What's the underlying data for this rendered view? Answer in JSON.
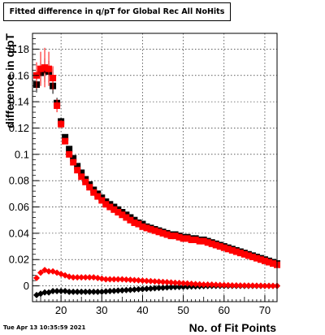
{
  "chart_data": {
    "type": "scatter",
    "title": "Fitted difference in q/pT for Global Rec All NoHits",
    "xlabel": "No. of Fit Points",
    "ylabel": "difference in q/pT",
    "timestamp": "Tue Apr 13 10:35:59 2021",
    "xlim": [
      13,
      73
    ],
    "ylim": [
      -0.012,
      0.192
    ],
    "x_ticks": [
      20,
      30,
      40,
      50,
      60,
      70
    ],
    "y_ticks": [
      0,
      0.02,
      0.04,
      0.06,
      0.08,
      0.1,
      0.12,
      0.14,
      0.16,
      0.18
    ],
    "y_tick_labels": [
      "0",
      "0.02",
      "0.04",
      "0.06",
      "0.08",
      "0.1",
      "0.12",
      "0.14",
      "0.16",
      "0.18"
    ],
    "grid": true,
    "series": [
      {
        "color": "#000000",
        "marker": "square",
        "x": [
          14,
          15,
          16,
          17,
          18,
          19,
          20,
          21,
          22,
          23,
          24,
          25,
          26,
          27,
          28,
          29,
          30,
          31,
          32,
          33,
          34,
          35,
          36,
          37,
          38,
          39,
          40,
          41,
          42,
          43,
          44,
          45,
          46,
          47,
          48,
          49,
          50,
          51,
          52,
          53,
          54,
          55,
          56,
          57,
          58,
          59,
          60,
          61,
          62,
          63,
          64,
          65,
          66,
          67,
          68,
          69,
          70,
          71,
          72,
          73
        ],
        "y": [
          0.153,
          0.162,
          0.164,
          0.163,
          0.152,
          0.139,
          0.125,
          0.113,
          0.104,
          0.097,
          0.091,
          0.086,
          0.081,
          0.077,
          0.073,
          0.07,
          0.067,
          0.064,
          0.062,
          0.06,
          0.058,
          0.056,
          0.054,
          0.052,
          0.05,
          0.048,
          0.047,
          0.045,
          0.044,
          0.043,
          0.042,
          0.041,
          0.04,
          0.039,
          0.039,
          0.038,
          0.037,
          0.037,
          0.036,
          0.036,
          0.035,
          0.035,
          0.034,
          0.033,
          0.032,
          0.031,
          0.03,
          0.029,
          0.028,
          0.027,
          0.026,
          0.025,
          0.024,
          0.023,
          0.022,
          0.021,
          0.02,
          0.019,
          0.018,
          0.017
        ],
        "yerr": [
          0.006,
          0.008,
          0.009,
          0.008,
          0.006,
          0.004,
          0.003,
          0.002,
          0.002,
          0.001,
          0.001,
          0.001,
          0.001,
          0.001,
          0.001,
          0.001,
          0.001,
          0.001,
          0.001,
          0.001,
          0.001,
          0.001,
          0.001,
          0.001,
          0.001,
          0.001,
          0.001,
          0.001,
          0.001,
          0.001,
          0.001,
          0.001,
          0.001,
          0.001,
          0.001,
          0.001,
          0.001,
          0.001,
          0.001,
          0.001,
          0.001,
          0.001,
          0.001,
          0.001,
          0.001,
          0.001,
          0.001,
          0.001,
          0.001,
          0.001,
          0.001,
          0.001,
          0.001,
          0.001,
          0.001,
          0.001,
          0.001,
          0.001,
          0.001,
          0.001
        ]
      },
      {
        "color": "#ff0000",
        "marker": "square",
        "x": [
          14,
          15,
          16,
          17,
          18,
          19,
          20,
          21,
          22,
          23,
          24,
          25,
          26,
          27,
          28,
          29,
          30,
          31,
          32,
          33,
          34,
          35,
          36,
          37,
          38,
          39,
          40,
          41,
          42,
          43,
          44,
          45,
          46,
          47,
          48,
          49,
          50,
          51,
          52,
          53,
          54,
          55,
          56,
          57,
          58,
          59,
          60,
          61,
          62,
          63,
          64,
          65,
          66,
          67,
          68,
          69,
          70,
          71,
          72,
          73
        ],
        "y": [
          0.16,
          0.165,
          0.166,
          0.165,
          0.158,
          0.137,
          0.123,
          0.11,
          0.1,
          0.094,
          0.088,
          0.083,
          0.079,
          0.075,
          0.071,
          0.068,
          0.065,
          0.062,
          0.06,
          0.058,
          0.056,
          0.054,
          0.052,
          0.05,
          0.048,
          0.047,
          0.045,
          0.044,
          0.043,
          0.042,
          0.041,
          0.04,
          0.039,
          0.038,
          0.038,
          0.037,
          0.036,
          0.036,
          0.035,
          0.035,
          0.034,
          0.034,
          0.033,
          0.032,
          0.031,
          0.03,
          0.029,
          0.028,
          0.027,
          0.026,
          0.025,
          0.024,
          0.023,
          0.022,
          0.021,
          0.02,
          0.019,
          0.018,
          0.017,
          0.016
        ],
        "yerr": [
          0.01,
          0.013,
          0.015,
          0.013,
          0.009,
          0.005,
          0.003,
          0.002,
          0.002,
          0.001,
          0.001,
          0.001,
          0.001,
          0.001,
          0.001,
          0.001,
          0.001,
          0.001,
          0.001,
          0.001,
          0.001,
          0.001,
          0.001,
          0.001,
          0.001,
          0.001,
          0.001,
          0.001,
          0.001,
          0.001,
          0.001,
          0.001,
          0.001,
          0.001,
          0.001,
          0.001,
          0.001,
          0.001,
          0.001,
          0.001,
          0.001,
          0.001,
          0.001,
          0.001,
          0.001,
          0.001,
          0.001,
          0.001,
          0.001,
          0.001,
          0.001,
          0.001,
          0.001,
          0.001,
          0.001,
          0.001,
          0.001,
          0.001,
          0.001,
          0.001
        ]
      },
      {
        "color": "#000000",
        "marker": "diamond",
        "x": [
          14,
          15,
          16,
          17,
          18,
          19,
          20,
          21,
          22,
          23,
          24,
          25,
          26,
          27,
          28,
          29,
          30,
          31,
          32,
          33,
          34,
          35,
          36,
          37,
          38,
          39,
          40,
          41,
          42,
          43,
          44,
          45,
          46,
          47,
          48,
          49,
          50,
          51,
          52,
          53,
          54,
          55,
          56,
          57,
          58,
          59,
          60,
          61,
          62,
          63,
          64,
          65,
          66,
          67,
          68,
          69,
          70,
          71,
          72,
          73
        ],
        "y": [
          -0.007,
          -0.006,
          -0.005,
          -0.005,
          -0.004,
          -0.004,
          -0.004,
          -0.004,
          -0.0045,
          -0.0045,
          -0.0045,
          -0.0045,
          -0.0045,
          -0.0045,
          -0.0045,
          -0.0045,
          -0.0045,
          -0.0042,
          -0.004,
          -0.0038,
          -0.0036,
          -0.0034,
          -0.0032,
          -0.003,
          -0.0028,
          -0.0026,
          -0.0024,
          -0.0022,
          -0.002,
          -0.0018,
          -0.0016,
          -0.0014,
          -0.0012,
          -0.001,
          -0.0009,
          -0.0008,
          -0.0007,
          -0.0006,
          -0.0005,
          -0.0004,
          -0.0003,
          -0.0002,
          -0.0001,
          0,
          0,
          0,
          0,
          0,
          0,
          0,
          0,
          0,
          0,
          0,
          0,
          0,
          0,
          0,
          0,
          0
        ],
        "yerr": [
          0.002,
          0.002,
          0.002,
          0.001,
          0.001,
          0.001,
          0.001,
          0.001,
          0.001,
          0.001,
          0.001,
          0.001,
          0.001,
          0.001,
          0.001,
          0.001,
          0.001,
          0.001,
          0.001,
          0.001,
          0.001,
          0.001,
          0.001,
          0.001,
          0.001,
          0.001,
          0.001,
          0.001,
          0.001,
          0.001,
          0.001,
          0.001,
          0.001,
          0.001,
          0.001,
          0.001,
          0.001,
          0.001,
          0.001,
          0.001,
          0.001,
          0.001,
          0.001,
          0.001,
          0.001,
          0.001,
          0.001,
          0.001,
          0.001,
          0.001,
          0.001,
          0.001,
          0.001,
          0.001,
          0.001,
          0.001,
          0.001,
          0.001,
          0.001,
          0.001
        ]
      },
      {
        "color": "#ff0000",
        "marker": "diamond",
        "x": [
          14,
          15,
          16,
          17,
          18,
          19,
          20,
          21,
          22,
          23,
          24,
          25,
          26,
          27,
          28,
          29,
          30,
          31,
          32,
          33,
          34,
          35,
          36,
          37,
          38,
          39,
          40,
          41,
          42,
          43,
          44,
          45,
          46,
          47,
          48,
          49,
          50,
          51,
          52,
          53,
          54,
          55,
          56,
          57,
          58,
          59,
          60,
          61,
          62,
          63,
          64,
          65,
          66,
          67,
          68,
          69,
          70,
          71,
          72,
          73
        ],
        "y": [
          0.006,
          0.01,
          0.012,
          0.011,
          0.011,
          0.01,
          0.009,
          0.008,
          0.007,
          0.0065,
          0.0065,
          0.0065,
          0.0065,
          0.0065,
          0.0065,
          0.006,
          0.0055,
          0.005,
          0.005,
          0.005,
          0.005,
          0.005,
          0.0048,
          0.0046,
          0.0044,
          0.0042,
          0.004,
          0.0038,
          0.0036,
          0.0034,
          0.0032,
          0.003,
          0.0028,
          0.0026,
          0.0024,
          0.0022,
          0.002,
          0.0018,
          0.0016,
          0.0014,
          0.0012,
          0.001,
          0.001,
          0.001,
          0.0008,
          0.0007,
          0.0006,
          0.0005,
          0.0004,
          0.0004,
          0.0003,
          0.0003,
          0.0002,
          0.0002,
          0.0001,
          0.0001,
          0,
          0,
          0,
          0
        ],
        "yerr": [
          0.002,
          0.002,
          0.002,
          0.001,
          0.001,
          0.001,
          0.001,
          0.001,
          0.001,
          0.001,
          0.001,
          0.001,
          0.001,
          0.001,
          0.001,
          0.001,
          0.001,
          0.001,
          0.001,
          0.001,
          0.001,
          0.001,
          0.001,
          0.001,
          0.001,
          0.001,
          0.001,
          0.001,
          0.001,
          0.001,
          0.001,
          0.001,
          0.001,
          0.001,
          0.001,
          0.001,
          0.001,
          0.001,
          0.001,
          0.001,
          0.001,
          0.001,
          0.001,
          0.001,
          0.001,
          0.001,
          0.001,
          0.001,
          0.001,
          0.001,
          0.001,
          0.001,
          0.001,
          0.001,
          0.001,
          0.001,
          0.001,
          0.001,
          0.001,
          0.001
        ]
      }
    ]
  }
}
